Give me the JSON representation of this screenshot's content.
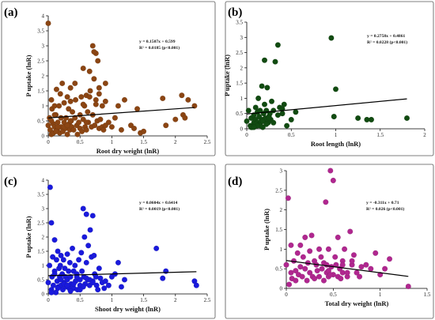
{
  "chart_data": [
    {
      "type": "scatter",
      "panel_label": "(a)",
      "xlabel": "Root dry weight (lnR)",
      "ylabel": "P uptake (lnR)",
      "xlim": [
        0,
        2.5
      ],
      "ylim": [
        0,
        4
      ],
      "xticks": [
        "0",
        "0.5",
        "1",
        "1.5",
        "2",
        "2.5"
      ],
      "yticks": [
        "0",
        "0.5",
        "1",
        "1.5",
        "2",
        "2.5",
        "3",
        "3.5",
        "4"
      ],
      "equation": "y = 0.1507x + 0.599",
      "r2": "R² = 0.0185 (p<0.001)",
      "trend": {
        "slope": 0.1507,
        "intercept": 0.599
      },
      "color": "#8b4513",
      "x": [
        0.0,
        0.0,
        0.02,
        0.03,
        0.05,
        0.05,
        0.06,
        0.08,
        0.08,
        0.1,
        0.1,
        0.12,
        0.13,
        0.14,
        0.15,
        0.17,
        0.18,
        0.19,
        0.2,
        0.2,
        0.22,
        0.23,
        0.25,
        0.25,
        0.27,
        0.28,
        0.3,
        0.3,
        0.32,
        0.33,
        0.34,
        0.35,
        0.36,
        0.37,
        0.38,
        0.4,
        0.42,
        0.43,
        0.45,
        0.46,
        0.48,
        0.5,
        0.5,
        0.52,
        0.53,
        0.55,
        0.55,
        0.57,
        0.58,
        0.6,
        0.6,
        0.62,
        0.63,
        0.65,
        0.66,
        0.68,
        0.7,
        0.7,
        0.72,
        0.73,
        0.75,
        0.75,
        0.77,
        0.78,
        0.8,
        0.8,
        0.82,
        0.85,
        0.85,
        0.87,
        0.9,
        0.95,
        1.0,
        1.05,
        1.1,
        1.15,
        1.2,
        1.3,
        1.35,
        1.4,
        1.45,
        1.5,
        1.8,
        1.85,
        2.0,
        2.1,
        2.12,
        2.15,
        2.2,
        2.3,
        0.72,
        0.75,
        0.8,
        0.9,
        0.65,
        0.55,
        0.42,
        0.25,
        0.1,
        0.05,
        0.15,
        0.35,
        0.6,
        0.9,
        0.35,
        0.3,
        0.12
      ],
      "y": [
        3.75,
        0.35,
        0.6,
        0.2,
        1.2,
        0.05,
        0.9,
        0.4,
        0.1,
        1.0,
        0.3,
        0.7,
        1.55,
        0.2,
        0.45,
        1.0,
        0.1,
        1.4,
        0.6,
        0.3,
        1.75,
        0.15,
        1.1,
        0.45,
        0.25,
        0.6,
        1.3,
        0.05,
        0.9,
        0.4,
        0.2,
        1.6,
        0.5,
        0.3,
        0.8,
        0.2,
        0.6,
        1.2,
        0.35,
        0.05,
        0.45,
        0.7,
        0.25,
        1.3,
        0.15,
        2.25,
        0.55,
        1.0,
        0.3,
        1.35,
        0.2,
        0.8,
        0.45,
        2.15,
        1.5,
        0.3,
        3.0,
        0.7,
        1.9,
        0.35,
        2.75,
        1.2,
        0.5,
        2.5,
        1.6,
        0.25,
        0.55,
        0.3,
        1.0,
        0.2,
        1.75,
        0.45,
        0.3,
        0.6,
        1.0,
        0.2,
        1.2,
        0.35,
        0.25,
        0.9,
        0.1,
        0.15,
        1.25,
        0.35,
        0.55,
        1.35,
        0.7,
        0.6,
        1.2,
        1.0,
        2.8,
        1.05,
        1.4,
        1.15,
        1.3,
        1.05,
        1.75,
        0.3,
        0.7,
        0.5,
        0.3,
        0.5,
        0.45,
        0.35,
        1.15,
        0.35,
        0.15
      ]
    },
    {
      "type": "scatter",
      "panel_label": "(b)",
      "xlabel": "Root length (lnR)",
      "ylabel": "P uptake (lnR)",
      "xlim": [
        0,
        2
      ],
      "ylim": [
        0,
        3.5
      ],
      "xticks": [
        "0",
        "0.5",
        "1",
        "1.5",
        "2"
      ],
      "yticks": [
        "0",
        "0.5",
        "1",
        "1.5",
        "2",
        "2.5",
        "3",
        "3.5"
      ],
      "equation": "y = 0.2758x + 0.4861",
      "r2": "R² = 0.0228 (p<0.001)",
      "trend": {
        "slope": 0.2758,
        "intercept": 0.4861
      },
      "color": "#114b11",
      "x": [
        0.0,
        0.02,
        0.04,
        0.05,
        0.06,
        0.08,
        0.08,
        0.1,
        0.1,
        0.11,
        0.12,
        0.12,
        0.13,
        0.14,
        0.15,
        0.15,
        0.16,
        0.17,
        0.18,
        0.18,
        0.19,
        0.2,
        0.2,
        0.21,
        0.22,
        0.23,
        0.24,
        0.25,
        0.26,
        0.27,
        0.28,
        0.3,
        0.32,
        0.35,
        0.37,
        0.4,
        0.42,
        0.45,
        0.5,
        0.55,
        0.95,
        1.0,
        0.98,
        1.25,
        1.35,
        1.4,
        1.8,
        0.05,
        0.1,
        0.15,
        0.2,
        0.25,
        0.3,
        0.12,
        0.08,
        0.18,
        0.22,
        0.35,
        0.4
      ],
      "y": [
        0.25,
        0.6,
        0.1,
        0.35,
        0.05,
        0.45,
        0.2,
        0.7,
        0.3,
        0.1,
        0.55,
        0.2,
        1.0,
        0.4,
        0.15,
        0.6,
        0.25,
        1.4,
        0.3,
        0.05,
        0.5,
        2.25,
        0.8,
        0.35,
        0.6,
        1.35,
        0.2,
        0.4,
        0.5,
        0.3,
        0.9,
        0.6,
        2.2,
        2.75,
        0.7,
        0.5,
        0.8,
        0.1,
        0.3,
        0.55,
        2.98,
        1.3,
        0.4,
        0.35,
        0.3,
        0.3,
        0.35,
        0.05,
        0.15,
        0.1,
        0.3,
        0.35,
        0.2,
        0.1,
        0.05,
        0.25,
        0.15,
        0.45,
        0.65
      ]
    },
    {
      "type": "scatter",
      "panel_label": "(c)",
      "xlabel": "Shoot dry weight (lnR)",
      "ylabel": "P uptake (lnR)",
      "xlim": [
        0,
        2.5
      ],
      "ylim": [
        0,
        4
      ],
      "xticks": [
        "0",
        "0.5",
        "1",
        "1.5",
        "2",
        "2.5"
      ],
      "yticks": [
        "0",
        "0.5",
        "1",
        "1.5",
        "2",
        "2.5",
        "3",
        "3.5",
        "4"
      ],
      "equation": "y = 0.0604x + 0.6414",
      "r2": "R² = 0.0019 (p<0.001)",
      "trend": {
        "slope": 0.0604,
        "intercept": 0.6414
      },
      "color": "#1a1adc",
      "x": [
        0.0,
        0.02,
        0.03,
        0.05,
        0.05,
        0.06,
        0.07,
        0.08,
        0.1,
        0.1,
        0.12,
        0.13,
        0.14,
        0.15,
        0.16,
        0.17,
        0.18,
        0.19,
        0.2,
        0.2,
        0.22,
        0.23,
        0.24,
        0.25,
        0.26,
        0.27,
        0.28,
        0.3,
        0.3,
        0.32,
        0.33,
        0.34,
        0.35,
        0.36,
        0.38,
        0.4,
        0.4,
        0.42,
        0.43,
        0.45,
        0.46,
        0.48,
        0.5,
        0.5,
        0.52,
        0.53,
        0.55,
        0.56,
        0.57,
        0.58,
        0.6,
        0.6,
        0.62,
        0.63,
        0.65,
        0.66,
        0.68,
        0.7,
        0.7,
        0.72,
        0.73,
        0.75,
        0.76,
        0.78,
        0.8,
        0.82,
        0.85,
        0.88,
        0.9,
        0.95,
        1.0,
        1.05,
        1.1,
        1.15,
        1.2,
        1.7,
        1.8,
        1.85,
        2.3,
        2.33,
        0.05,
        0.15,
        0.25,
        0.35,
        0.45,
        0.55,
        0.65,
        0.1,
        0.3,
        0.5,
        0.7,
        0.2,
        0.4,
        0.6
      ],
      "y": [
        0.4,
        1.0,
        3.75,
        0.15,
        2.5,
        0.6,
        1.3,
        0.3,
        1.9,
        0.8,
        0.05,
        1.2,
        0.45,
        1.5,
        0.25,
        0.9,
        0.6,
        1.0,
        0.3,
        1.35,
        0.7,
        0.15,
        1.2,
        0.4,
        0.9,
        0.6,
        0.25,
        1.4,
        0.5,
        0.8,
        0.2,
        1.1,
        0.6,
        0.35,
        1.6,
        0.2,
        0.8,
        1.0,
        0.45,
        0.7,
        0.15,
        1.2,
        0.5,
        0.3,
        1.45,
        0.8,
        3.0,
        0.6,
        2.0,
        0.35,
        2.8,
        1.1,
        0.5,
        1.7,
        0.3,
        2.25,
        1.3,
        2.75,
        0.45,
        1.35,
        0.7,
        0.6,
        0.3,
        0.15,
        0.9,
        0.55,
        0.4,
        0.2,
        0.45,
        0.3,
        0.6,
        0.7,
        1.1,
        0.25,
        0.5,
        1.6,
        0.55,
        0.8,
        0.45,
        0.3,
        0.05,
        0.2,
        0.35,
        0.1,
        0.6,
        0.25,
        0.5,
        0.7,
        0.3,
        0.15,
        0.4,
        0.5,
        0.35,
        0.55
      ]
    },
    {
      "type": "scatter",
      "panel_label": "(d)",
      "xlabel": "Total dry weight (lnR)",
      "ylabel": "P uptake (lnR)",
      "xlim": [
        0,
        1.5
      ],
      "ylim": [
        0,
        3
      ],
      "xticks": [
        "0",
        "0.5",
        "1",
        "1.5"
      ],
      "yticks": [
        "0",
        "0.5",
        "1",
        "1.5",
        "2",
        "2.5",
        "3"
      ],
      "equation": "y = -0.311x + 0.71",
      "r2": "R² = 0.026 (p<0.001)",
      "trend": {
        "slope": -0.311,
        "intercept": 0.71
      },
      "color": "#b0278f",
      "x": [
        0.0,
        0.02,
        0.03,
        0.05,
        0.05,
        0.06,
        0.08,
        0.1,
        0.1,
        0.12,
        0.13,
        0.15,
        0.15,
        0.17,
        0.18,
        0.2,
        0.2,
        0.22,
        0.23,
        0.25,
        0.25,
        0.27,
        0.28,
        0.3,
        0.3,
        0.32,
        0.33,
        0.35,
        0.35,
        0.37,
        0.38,
        0.4,
        0.4,
        0.42,
        0.43,
        0.45,
        0.45,
        0.47,
        0.48,
        0.5,
        0.5,
        0.52,
        0.53,
        0.55,
        0.55,
        0.57,
        0.58,
        0.6,
        0.6,
        0.62,
        0.65,
        0.68,
        0.7,
        0.72,
        0.75,
        0.78,
        0.8,
        0.85,
        0.9,
        0.95,
        1.0,
        1.05,
        1.1,
        1.3,
        0.45,
        0.43,
        0.47,
        0.6,
        0.65,
        0.7
      ],
      "y": [
        0.6,
        2.3,
        0.1,
        0.4,
        1.1,
        0.25,
        0.7,
        0.2,
        0.45,
        0.9,
        0.35,
        1.1,
        0.55,
        0.3,
        0.8,
        0.5,
        1.3,
        0.2,
        0.65,
        0.4,
        0.95,
        1.35,
        0.3,
        0.7,
        0.25,
        0.6,
        0.45,
        1.0,
        0.3,
        0.8,
        0.5,
        0.2,
        0.65,
        2.2,
        0.4,
        1.0,
        0.3,
        3.0,
        0.55,
        0.35,
        2.75,
        0.8,
        0.6,
        0.3,
        1.3,
        0.5,
        0.25,
        0.7,
        0.4,
        1.0,
        0.3,
        1.45,
        0.6,
        0.85,
        0.4,
        0.3,
        0.55,
        0.6,
        0.5,
        0.9,
        0.35,
        0.5,
        0.75,
        0.05,
        0.45,
        0.6,
        0.35,
        0.6,
        0.4,
        0.7
      ]
    }
  ]
}
